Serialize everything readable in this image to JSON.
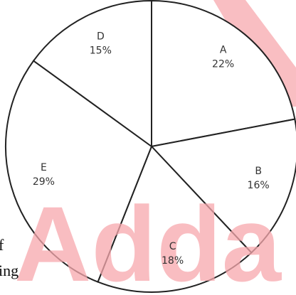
{
  "chart_data": {
    "type": "pie",
    "categories": [
      "A",
      "B",
      "C",
      "E",
      "D"
    ],
    "values": [
      22,
      16,
      18,
      29,
      15
    ],
    "value_labels": [
      "22%",
      "16%",
      "18%",
      "29%",
      "15%"
    ],
    "color": "#ffffff",
    "edge_color": "#222222",
    "watermark": "Adda",
    "text_fragments": [
      "f",
      "ing"
    ]
  }
}
